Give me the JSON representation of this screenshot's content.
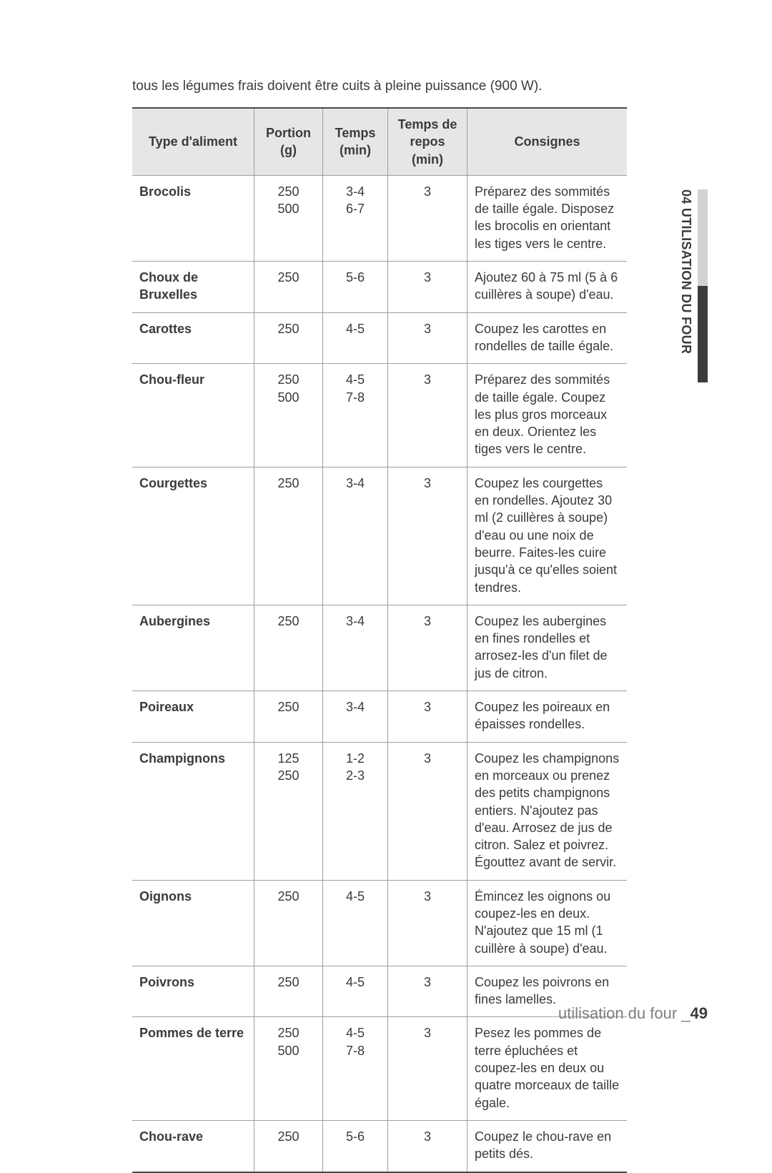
{
  "intro": "tous les légumes frais doivent être cuits à pleine puissance (900 W).",
  "table": {
    "columns": {
      "type": "Type d'aliment",
      "portion": "Portion (g)",
      "time": "Temps (min)",
      "rest": "Temps de repos (min)",
      "instructions": "Consignes"
    },
    "rows": [
      {
        "name": "Brocolis",
        "portion": [
          "250",
          "500"
        ],
        "time": [
          "3-4",
          "6-7"
        ],
        "rest": "3",
        "instr": "Préparez des sommités de taille égale. Disposez les brocolis en orientant les tiges vers le centre."
      },
      {
        "name": "Choux de Bruxelles",
        "portion": [
          "250"
        ],
        "time": [
          "5-6"
        ],
        "rest": "3",
        "instr": "Ajoutez 60 à 75 ml (5 à 6 cuillères à soupe) d'eau."
      },
      {
        "name": "Carottes",
        "portion": [
          "250"
        ],
        "time": [
          "4-5"
        ],
        "rest": "3",
        "instr": "Coupez les carottes en rondelles de taille égale."
      },
      {
        "name": "Chou-fleur",
        "portion": [
          "250",
          "500"
        ],
        "time": [
          "4-5",
          "7-8"
        ],
        "rest": "3",
        "instr": "Préparez des sommités de taille égale. Coupez les plus gros morceaux en deux. Orientez les tiges vers le centre."
      },
      {
        "name": "Courgettes",
        "portion": [
          "250"
        ],
        "time": [
          "3-4"
        ],
        "rest": "3",
        "instr": "Coupez les courgettes en rondelles. Ajoutez 30 ml (2 cuillères à soupe) d'eau ou une noix de beurre. Faites-les cuire jusqu'à ce qu'elles soient tendres."
      },
      {
        "name": "Aubergines",
        "portion": [
          "250"
        ],
        "time": [
          "3-4"
        ],
        "rest": "3",
        "instr": "Coupez les aubergines en fines rondelles et arrosez-les d'un filet de jus de citron."
      },
      {
        "name": "Poireaux",
        "portion": [
          "250"
        ],
        "time": [
          "3-4"
        ],
        "rest": "3",
        "instr": "Coupez les poireaux en épaisses rondelles."
      },
      {
        "name": "Champignons",
        "portion": [
          "125",
          "250"
        ],
        "time": [
          "1-2",
          "2-3"
        ],
        "rest": "3",
        "instr": "Coupez les champignons en morceaux ou prenez des petits champignons entiers. N'ajoutez pas d'eau. Arrosez de jus de citron. Salez et poivrez. Égouttez avant de servir."
      },
      {
        "name": "Oignons",
        "portion": [
          "250"
        ],
        "time": [
          "4-5"
        ],
        "rest": "3",
        "instr": "Émincez les oignons ou coupez-les en deux. N'ajoutez que 15 ml (1 cuillère à soupe) d'eau."
      },
      {
        "name": "Poivrons",
        "portion": [
          "250"
        ],
        "time": [
          "4-5"
        ],
        "rest": "3",
        "instr": "Coupez les poivrons en fines lamelles."
      },
      {
        "name": "Pommes de terre",
        "portion": [
          "250",
          "500"
        ],
        "time": [
          "4-5",
          "7-8"
        ],
        "rest": "3",
        "instr": "Pesez les pommes de terre épluchées et coupez-les en deux ou quatre morceaux de taille égale."
      },
      {
        "name": "Chou-rave",
        "portion": [
          "250"
        ],
        "time": [
          "5-6"
        ],
        "rest": "3",
        "instr": "Coupez le chou-rave en petits dés."
      }
    ]
  },
  "sideTab": "04 UTILISATION DU FOUR",
  "footer": {
    "label": "utilisation du four _",
    "page": "49"
  }
}
